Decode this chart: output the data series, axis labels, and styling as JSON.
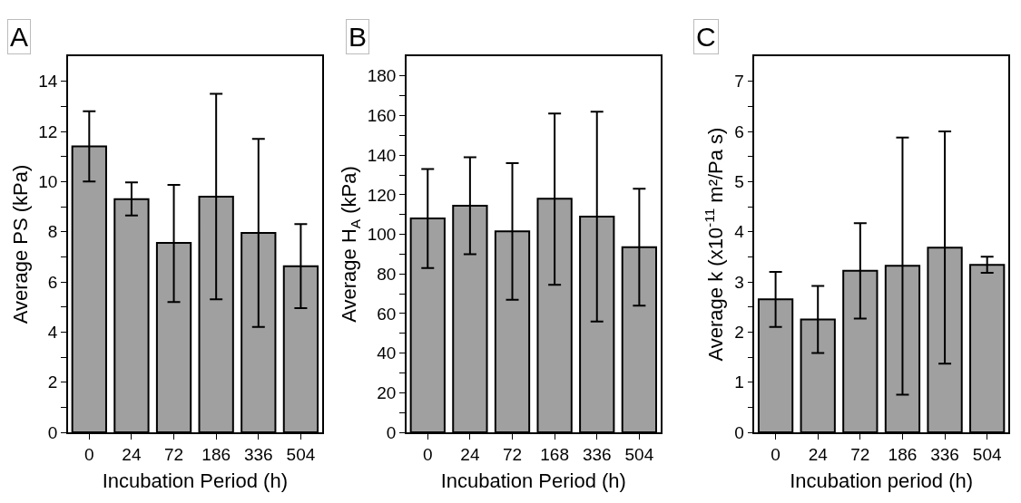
{
  "chart_data": [
    {
      "type": "bar",
      "title": "A",
      "xlabel": "Incubation Period (h)",
      "ylabel": "Average PS (kPa)",
      "categories": [
        "0",
        "24",
        "72",
        "186",
        "336",
        "504"
      ],
      "color": "#a0a0a0",
      "values": [
        11.4,
        9.3,
        7.55,
        9.4,
        7.95,
        6.62
      ],
      "errors": [
        [
          10.0,
          12.8
        ],
        [
          8.65,
          9.97
        ],
        [
          5.2,
          9.87
        ],
        [
          5.3,
          13.5
        ],
        [
          4.2,
          11.7
        ],
        [
          4.95,
          8.3
        ]
      ],
      "ylim": [
        0,
        15
      ],
      "yticks": [
        0,
        {
          "value": 1,
          "label": null
        },
        2,
        {
          "value": 3,
          "label": null
        },
        4,
        {
          "value": 5,
          "label": null
        },
        6,
        {
          "value": 7,
          "label": null
        },
        8,
        {
          "value": 9,
          "label": null
        },
        10,
        {
          "value": 11,
          "label": null
        },
        12,
        {
          "value": 13,
          "label": null
        },
        14
      ]
    },
    {
      "type": "bar",
      "title": "B",
      "xlabel": "Incubation Period (h)",
      "ylabel": "Average H$_{A}$ (kPa)",
      "categories": [
        "0",
        "24",
        "72",
        "168",
        "336",
        "504"
      ],
      "color": "#a0a0a0",
      "values": [
        108,
        114.5,
        101.5,
        118,
        109,
        93.5
      ],
      "errors": [
        [
          83,
          133
        ],
        [
          90,
          139
        ],
        [
          67,
          136
        ],
        [
          74.5,
          161
        ],
        [
          56,
          162
        ],
        [
          64,
          123
        ]
      ],
      "ylim": [
        0,
        190
      ],
      "yticks": [
        0,
        {
          "value": 10,
          "label": null
        },
        20,
        {
          "value": 30,
          "label": null
        },
        40,
        {
          "value": 50,
          "label": null
        },
        60,
        {
          "value": 70,
          "label": null
        },
        80,
        {
          "value": 90,
          "label": null
        },
        100,
        {
          "value": 110,
          "label": null
        },
        120,
        {
          "value": 130,
          "label": null
        },
        140,
        {
          "value": 150,
          "label": null
        },
        160,
        {
          "value": 170,
          "label": null
        },
        180
      ]
    },
    {
      "type": "bar",
      "title": "C",
      "xlabel": "Incubation period (h)",
      "ylabel": "Average k (x10$^{-11}$ m²/Pa s)",
      "categories": [
        "0",
        "24",
        "72",
        "186",
        "336",
        "504"
      ],
      "color": "#a0a0a0",
      "values": [
        2.65,
        2.25,
        3.22,
        3.32,
        3.68,
        3.34
      ],
      "errors": [
        [
          2.1,
          3.2
        ],
        [
          1.58,
          2.92
        ],
        [
          2.27,
          4.17
        ],
        [
          0.75,
          5.88
        ],
        [
          1.37,
          6.0
        ],
        [
          3.18,
          3.5
        ]
      ],
      "ylim": [
        0,
        7.5
      ],
      "yticks": [
        0,
        {
          "value": 0.5,
          "label": null
        },
        1,
        {
          "value": 1.5,
          "label": null
        },
        2,
        {
          "value": 2.5,
          "label": null
        },
        3,
        {
          "value": 3.5,
          "label": null
        },
        4,
        {
          "value": 4.5,
          "label": null
        },
        5,
        {
          "value": 5.5,
          "label": null
        },
        6,
        {
          "value": 6.5,
          "label": null
        },
        7
      ]
    }
  ]
}
